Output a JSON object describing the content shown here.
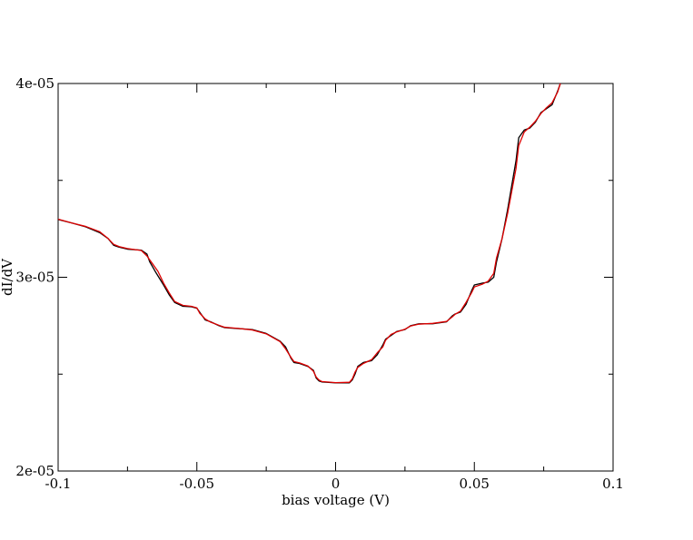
{
  "chart_data": {
    "type": "line",
    "title": "",
    "xlabel": "bias voltage (V)",
    "ylabel": "dI/dV",
    "xlim": [
      -0.1,
      0.1
    ],
    "ylim": [
      2e-05,
      4e-05
    ],
    "grid": false,
    "x_ticks": [
      -0.1,
      -0.05,
      0,
      0.05,
      0.1
    ],
    "x_tick_labels": [
      "-0.1",
      "-0.05",
      "0",
      "0.05",
      "0.1"
    ],
    "y_ticks": [
      2e-05,
      3e-05,
      4e-05
    ],
    "y_tick_labels": [
      "2e-05",
      "3e-05",
      "4e-05"
    ],
    "series": [
      {
        "color": "#000000",
        "x": [
          -0.1,
          -0.095,
          -0.09,
          -0.085,
          -0.082,
          -0.08,
          -0.078,
          -0.075,
          -0.07,
          -0.068,
          -0.067,
          -0.065,
          -0.062,
          -0.06,
          -0.058,
          -0.055,
          -0.052,
          -0.05,
          -0.049,
          -0.047,
          -0.045,
          -0.042,
          -0.04,
          -0.035,
          -0.03,
          -0.025,
          -0.02,
          -0.018,
          -0.016,
          -0.015,
          -0.013,
          -0.01,
          -0.008,
          -0.007,
          -0.006,
          -0.005,
          0,
          0.005,
          0.006,
          0.007,
          0.008,
          0.01,
          0.013,
          0.015,
          0.017,
          0.018,
          0.02,
          0.022,
          0.025,
          0.027,
          0.03,
          0.035,
          0.04,
          0.042,
          0.043,
          0.045,
          0.047,
          0.049,
          0.05,
          0.053,
          0.055,
          0.057,
          0.058,
          0.06,
          0.062,
          0.065,
          0.066,
          0.068,
          0.07,
          0.072,
          0.074,
          0.076,
          0.078,
          0.08,
          0.081
        ],
        "y": [
          3.298e-05,
          3.28e-05,
          3.26e-05,
          3.23e-05,
          3.2e-05,
          3.165e-05,
          3.155e-05,
          3.145e-05,
          3.14e-05,
          3.12e-05,
          3.08e-05,
          3.03e-05,
          2.96e-05,
          2.91e-05,
          2.87e-05,
          2.85e-05,
          2.848e-05,
          2.84e-05,
          2.82e-05,
          2.78e-05,
          2.77e-05,
          2.75e-05,
          2.74e-05,
          2.735e-05,
          2.73e-05,
          2.71e-05,
          2.67e-05,
          2.64e-05,
          2.58e-05,
          2.56e-05,
          2.555e-05,
          2.54e-05,
          2.52e-05,
          2.48e-05,
          2.465e-05,
          2.46e-05,
          2.455e-05,
          2.455e-05,
          2.47e-05,
          2.5e-05,
          2.54e-05,
          2.56e-05,
          2.57e-05,
          2.6e-05,
          2.65e-05,
          2.68e-05,
          2.7e-05,
          2.72e-05,
          2.73e-05,
          2.75e-05,
          2.76e-05,
          2.76e-05,
          2.77e-05,
          2.8e-05,
          2.81e-05,
          2.82e-05,
          2.86e-05,
          2.93e-05,
          2.96e-05,
          2.97e-05,
          2.975e-05,
          3e-05,
          3.08e-05,
          3.2e-05,
          3.35e-05,
          3.6e-05,
          3.72e-05,
          3.76e-05,
          3.77e-05,
          3.8e-05,
          3.85e-05,
          3.87e-05,
          3.89e-05,
          3.96e-05,
          4e-05
        ]
      },
      {
        "color": "#dd0000",
        "x": [
          -0.1,
          -0.095,
          -0.09,
          -0.085,
          -0.082,
          -0.08,
          -0.078,
          -0.075,
          -0.07,
          -0.068,
          -0.066,
          -0.064,
          -0.062,
          -0.06,
          -0.058,
          -0.055,
          -0.052,
          -0.05,
          -0.049,
          -0.047,
          -0.045,
          -0.042,
          -0.04,
          -0.035,
          -0.03,
          -0.025,
          -0.02,
          -0.018,
          -0.016,
          -0.015,
          -0.013,
          -0.01,
          -0.008,
          -0.007,
          -0.006,
          -0.005,
          0,
          0.005,
          0.006,
          0.007,
          0.008,
          0.01,
          0.013,
          0.015,
          0.017,
          0.018,
          0.02,
          0.022,
          0.025,
          0.027,
          0.03,
          0.035,
          0.04,
          0.042,
          0.043,
          0.045,
          0.047,
          0.049,
          0.05,
          0.053,
          0.055,
          0.057,
          0.058,
          0.06,
          0.062,
          0.065,
          0.066,
          0.068,
          0.07,
          0.072,
          0.074,
          0.076,
          0.078,
          0.08,
          0.081
        ],
        "y": [
          3.3e-05,
          3.28e-05,
          3.262e-05,
          3.235e-05,
          3.2e-05,
          3.17e-05,
          3.158e-05,
          3.148e-05,
          3.138e-05,
          3.11e-05,
          3.07e-05,
          3.03e-05,
          2.97e-05,
          2.92e-05,
          2.875e-05,
          2.855e-05,
          2.85e-05,
          2.842e-05,
          2.815e-05,
          2.785e-05,
          2.768e-05,
          2.752e-05,
          2.742e-05,
          2.736e-05,
          2.728e-05,
          2.708e-05,
          2.668e-05,
          2.63e-05,
          2.585e-05,
          2.565e-05,
          2.558e-05,
          2.542e-05,
          2.515e-05,
          2.485e-05,
          2.47e-05,
          2.462e-05,
          2.456e-05,
          2.458e-05,
          2.475e-05,
          2.51e-05,
          2.535e-05,
          2.555e-05,
          2.575e-05,
          2.61e-05,
          2.64e-05,
          2.675e-05,
          2.705e-05,
          2.718e-05,
          2.732e-05,
          2.748e-05,
          2.758e-05,
          2.762e-05,
          2.772e-05,
          2.795e-05,
          2.808e-05,
          2.825e-05,
          2.87e-05,
          2.92e-05,
          2.95e-05,
          2.965e-05,
          2.98e-05,
          3.02e-05,
          3.1e-05,
          3.2e-05,
          3.33e-05,
          3.56e-05,
          3.68e-05,
          3.75e-05,
          3.775e-05,
          3.805e-05,
          3.845e-05,
          3.875e-05,
          3.9e-05,
          3.955e-05,
          4e-05
        ]
      }
    ]
  }
}
